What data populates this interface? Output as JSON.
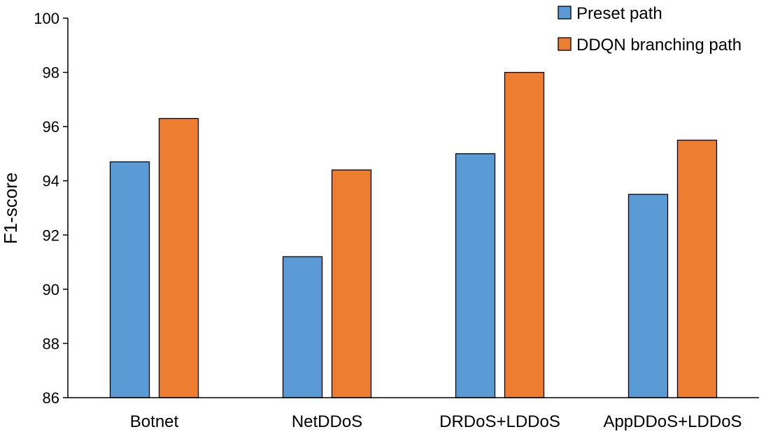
{
  "chart_data": {
    "type": "bar",
    "title": "",
    "xlabel": "",
    "ylabel": "F1-score",
    "ylim": [
      86,
      100
    ],
    "yticks": [
      86,
      88,
      90,
      92,
      94,
      96,
      98,
      100
    ],
    "grid": false,
    "legend_position": "top-right",
    "categories": [
      "Botnet",
      "NetDDoS",
      "DRDoS+LDDoS",
      "AppDDoS+LDDoS"
    ],
    "series": [
      {
        "name": "Preset path",
        "color": "#5b9bd5",
        "values": [
          94.7,
          91.2,
          95.0,
          93.5
        ]
      },
      {
        "name": "DDQN branching path",
        "color": "#ed7d31",
        "values": [
          96.3,
          94.4,
          98.0,
          95.5
        ]
      }
    ]
  }
}
